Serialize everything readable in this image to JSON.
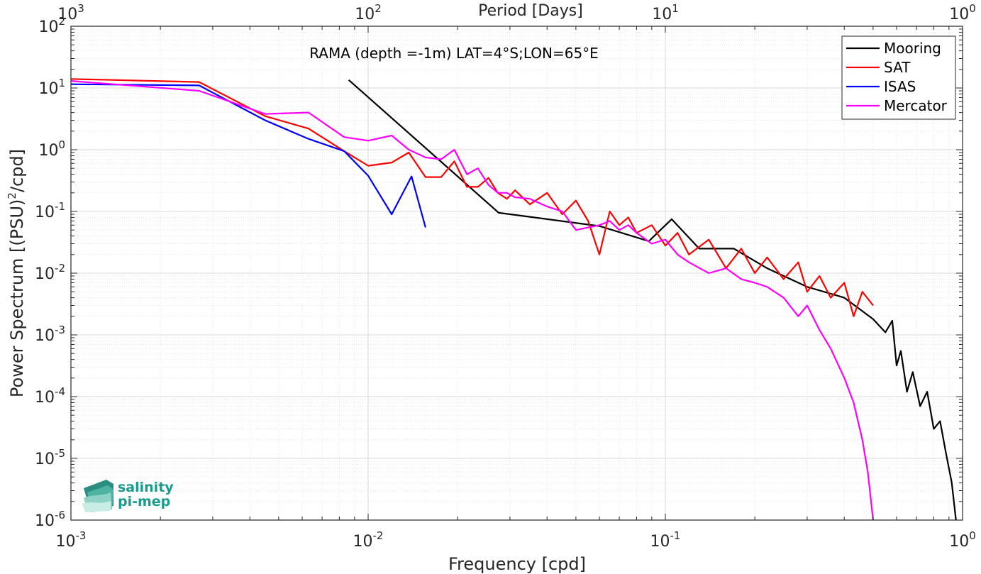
{
  "chart_data": {
    "type": "line",
    "title": "RAMA (depth =-1m) LAT=4°S;LON=65°E",
    "xlabel": "Frequency [cpd]",
    "ylabel": "Power Spectrum [(PSU)²/cpd]",
    "ylabel_main": "Power Spectrum [(PSU)",
    "ylabel_sup": "2",
    "ylabel_end": "/cpd]",
    "top_xlabel": "Period [Days]",
    "xscale": "log",
    "yscale": "log",
    "xlim": [
      0.001,
      1
    ],
    "ylim": [
      1e-06,
      100
    ],
    "grid": true,
    "legend_position": "top-right",
    "x_ticks": [
      {
        "base": "10",
        "exp": "-3",
        "value": 0.001
      },
      {
        "base": "10",
        "exp": "-2",
        "value": 0.01
      },
      {
        "base": "10",
        "exp": "-1",
        "value": 0.1
      },
      {
        "base": "10",
        "exp": "0",
        "value": 1
      }
    ],
    "top_ticks": [
      {
        "base": "10",
        "exp": "3",
        "value": 0.001
      },
      {
        "base": "10",
        "exp": "2",
        "value": 0.01
      },
      {
        "base": "10",
        "exp": "1",
        "value": 0.1
      },
      {
        "base": "10",
        "exp": "0",
        "value": 1
      }
    ],
    "y_ticks": [
      {
        "base": "10",
        "exp": "2",
        "value": 100
      },
      {
        "base": "10",
        "exp": "1",
        "value": 10
      },
      {
        "base": "10",
        "exp": "0",
        "value": 1
      },
      {
        "base": "10",
        "exp": "-1",
        "value": 0.1
      },
      {
        "base": "10",
        "exp": "-2",
        "value": 0.01
      },
      {
        "base": "10",
        "exp": "-3",
        "value": 0.001
      },
      {
        "base": "10",
        "exp": "-4",
        "value": 0.0001
      },
      {
        "base": "10",
        "exp": "-5",
        "value": 1e-05
      },
      {
        "base": "10",
        "exp": "-6",
        "value": 1e-06
      }
    ],
    "series": [
      {
        "name": "Mooring",
        "color": "#000000",
        "x": [
          0.0086,
          0.0275,
          0.06,
          0.088,
          0.105,
          0.13,
          0.17,
          0.22,
          0.3,
          0.4,
          0.5,
          0.55,
          0.58,
          0.6,
          0.62,
          0.65,
          0.68,
          0.72,
          0.76,
          0.8,
          0.84,
          0.88,
          0.92,
          0.95
        ],
        "y": [
          13.5,
          0.095,
          0.058,
          0.033,
          0.075,
          0.025,
          0.025,
          0.012,
          0.006,
          0.004,
          0.0018,
          0.0011,
          0.0017,
          0.00032,
          0.00055,
          0.00012,
          0.00025,
          7e-05,
          0.00012,
          3e-05,
          4e-05,
          1.2e-05,
          4e-06,
          1e-06
        ]
      },
      {
        "name": "SAT",
        "color": "#ff0000",
        "x": [
          0.001,
          0.0027,
          0.0045,
          0.0063,
          0.0083,
          0.01,
          0.012,
          0.0137,
          0.0156,
          0.0176,
          0.0195,
          0.0215,
          0.0234,
          0.0254,
          0.0273,
          0.0293,
          0.0312,
          0.035,
          0.04,
          0.045,
          0.05,
          0.055,
          0.06,
          0.065,
          0.07,
          0.075,
          0.08,
          0.09,
          0.1,
          0.11,
          0.12,
          0.14,
          0.16,
          0.18,
          0.2,
          0.22,
          0.25,
          0.28,
          0.3,
          0.33,
          0.36,
          0.4,
          0.43,
          0.46,
          0.5
        ],
        "y": [
          14,
          12.5,
          3.5,
          2.2,
          0.95,
          0.55,
          0.62,
          0.9,
          0.36,
          0.36,
          0.65,
          0.25,
          0.25,
          0.35,
          0.2,
          0.16,
          0.22,
          0.13,
          0.2,
          0.09,
          0.15,
          0.07,
          0.02,
          0.1,
          0.06,
          0.08,
          0.045,
          0.06,
          0.028,
          0.045,
          0.02,
          0.035,
          0.012,
          0.025,
          0.01,
          0.018,
          0.008,
          0.015,
          0.005,
          0.009,
          0.004,
          0.007,
          0.002,
          0.005,
          0.003
        ]
      },
      {
        "name": "ISAS",
        "color": "#0000ff",
        "x": [
          0.001,
          0.0027,
          0.0045,
          0.0063,
          0.0083,
          0.01,
          0.012,
          0.014,
          0.0156
        ],
        "y": [
          11.5,
          11,
          3.0,
          1.5,
          0.95,
          0.38,
          0.09,
          0.37,
          0.055
        ]
      },
      {
        "name": "Mercator",
        "color": "#ff00ff",
        "x": [
          0.001,
          0.0027,
          0.0045,
          0.0063,
          0.0083,
          0.01,
          0.012,
          0.0137,
          0.0156,
          0.0176,
          0.0195,
          0.0215,
          0.0234,
          0.0254,
          0.0273,
          0.0293,
          0.0312,
          0.035,
          0.04,
          0.045,
          0.05,
          0.055,
          0.06,
          0.065,
          0.07,
          0.075,
          0.08,
          0.09,
          0.1,
          0.11,
          0.12,
          0.14,
          0.16,
          0.18,
          0.2,
          0.22,
          0.25,
          0.28,
          0.3,
          0.33,
          0.36,
          0.4,
          0.43,
          0.46,
          0.48,
          0.5
        ],
        "y": [
          13,
          9,
          3.8,
          4.0,
          1.6,
          1.4,
          1.7,
          1.0,
          0.75,
          0.7,
          1.0,
          0.4,
          0.5,
          0.27,
          0.2,
          0.2,
          0.17,
          0.16,
          0.12,
          0.1,
          0.05,
          0.055,
          0.06,
          0.07,
          0.05,
          0.06,
          0.045,
          0.03,
          0.035,
          0.02,
          0.015,
          0.01,
          0.012,
          0.008,
          0.007,
          0.006,
          0.004,
          0.002,
          0.003,
          0.0012,
          0.0006,
          0.0002,
          8e-05,
          2e-05,
          6e-06,
          1e-06
        ]
      }
    ]
  },
  "logo": {
    "line1": "salinity",
    "line2": "pi-mep"
  }
}
